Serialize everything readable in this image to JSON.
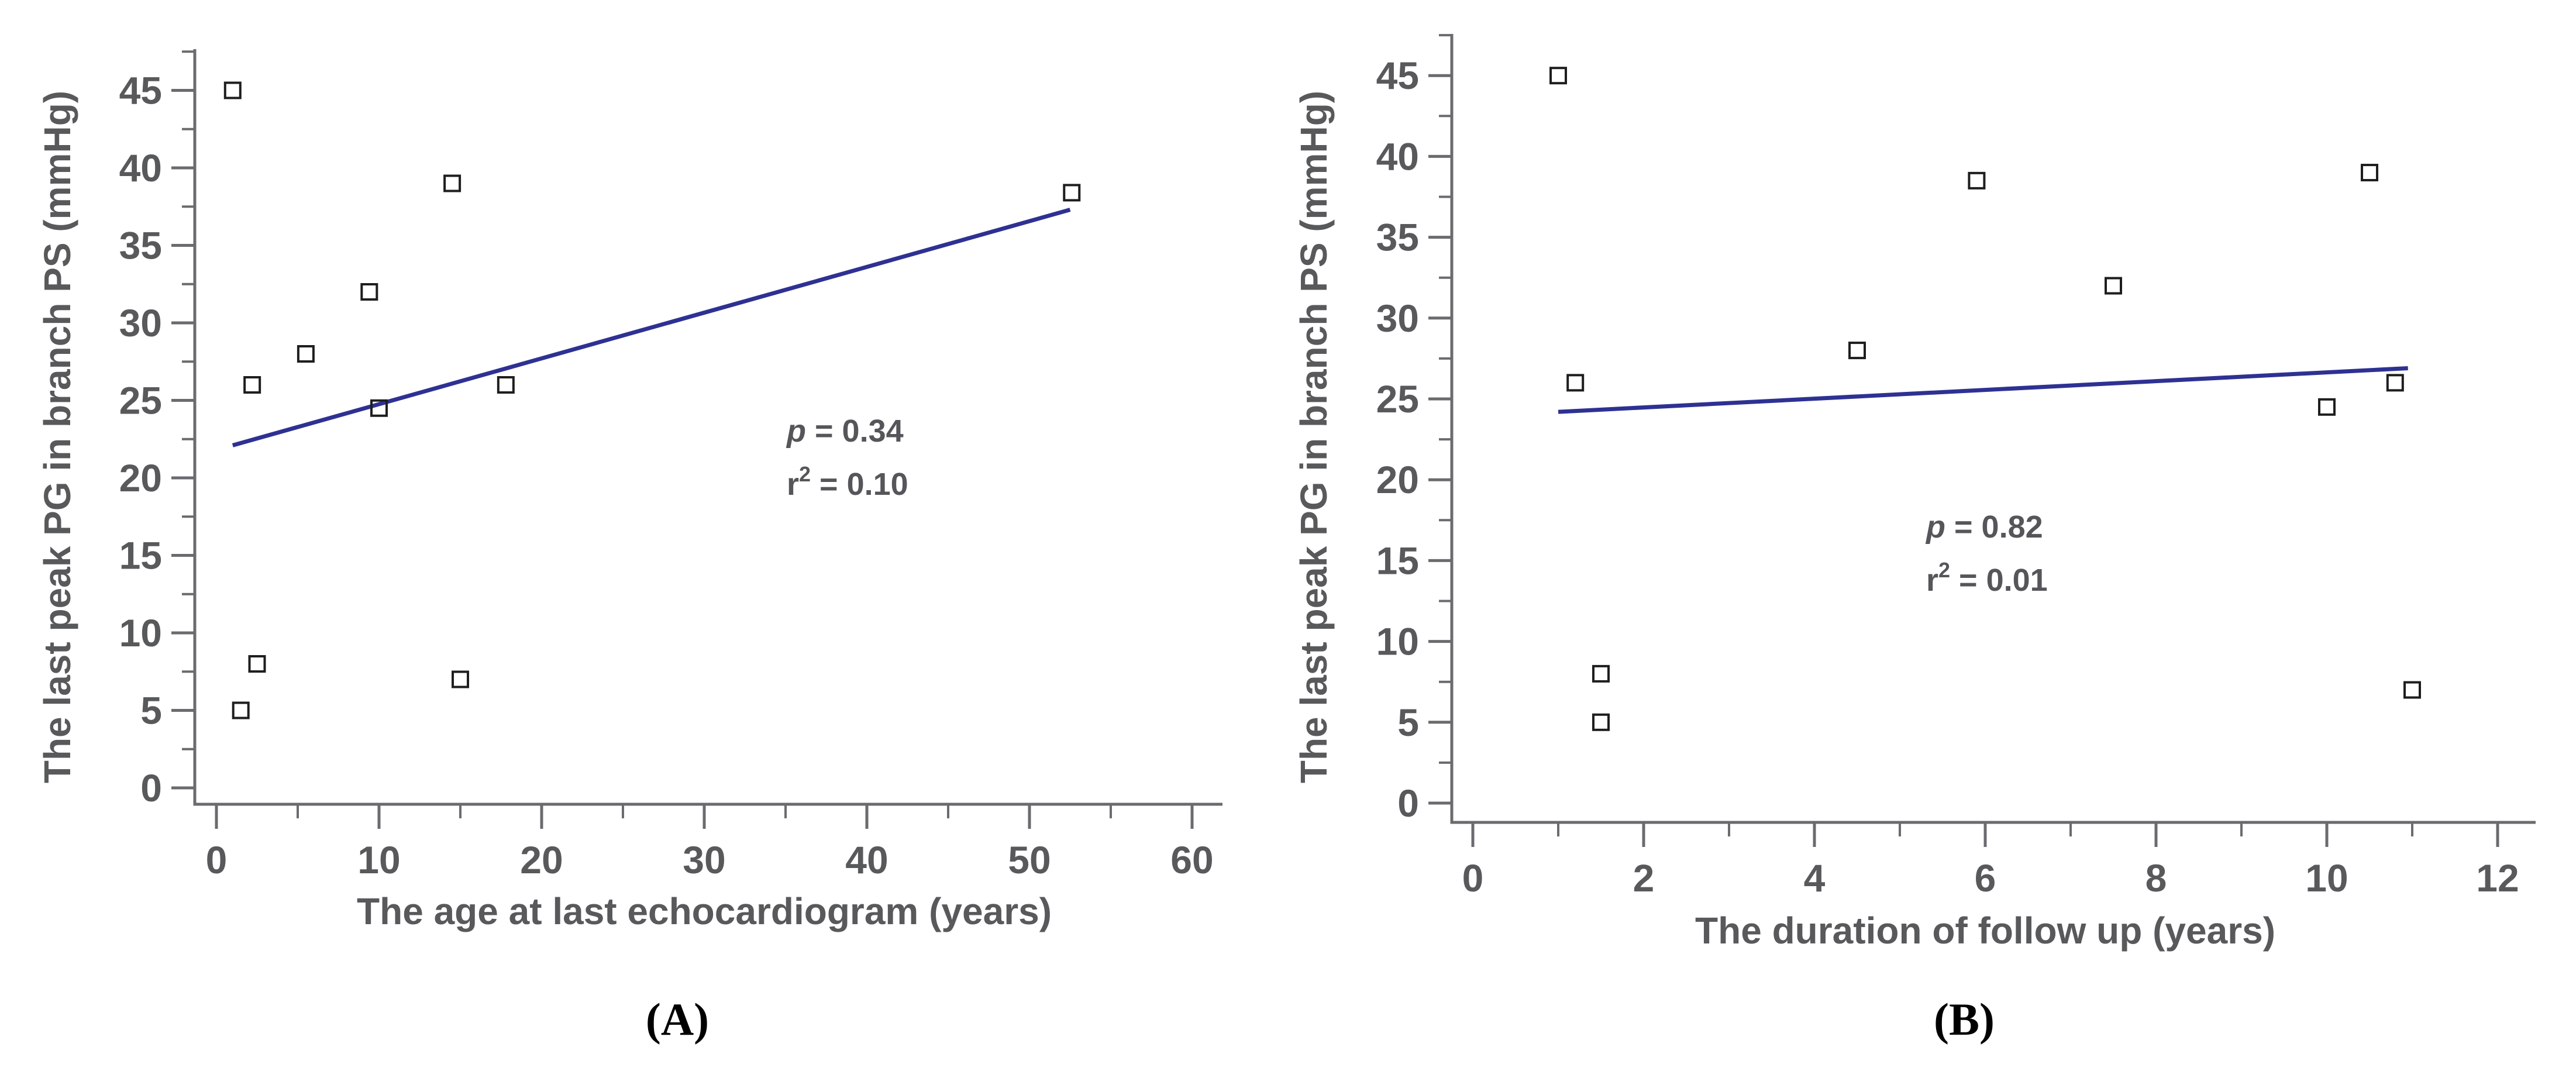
{
  "figure": {
    "background": "#ffffff",
    "description_visible_text_only": "Two scatter plots with open square markers and linear regression lines"
  },
  "style": {
    "trend_color": "#2e3192",
    "marker_color": "#1e1e1e",
    "axis_color": "#6a6b6e",
    "text_color": "#58595b",
    "annotation_color": "#55565a"
  },
  "chart_data": [
    {
      "id": "A",
      "type": "scatter",
      "panel_label": "(A)",
      "xlabel": "The age at last echocardiogram (years)",
      "ylabel": "The last peak PG in branch PS (mmHg)",
      "xlim": [
        0,
        60
      ],
      "ylim": [
        0,
        45
      ],
      "x_ticks": [
        0,
        10,
        20,
        30,
        40,
        50,
        60
      ],
      "x_minor_step": 5,
      "y_ticks": [
        0,
        5,
        10,
        15,
        20,
        25,
        30,
        35,
        40,
        45
      ],
      "y_minor_step": 2.5,
      "grid": false,
      "legend": false,
      "marker": "open-square",
      "points": [
        [
          1,
          45
        ],
        [
          2.2,
          26
        ],
        [
          1.5,
          5
        ],
        [
          2.5,
          8
        ],
        [
          5.5,
          28
        ],
        [
          9.4,
          32
        ],
        [
          10,
          24.5
        ],
        [
          14.5,
          39
        ],
        [
          15,
          7
        ],
        [
          17.8,
          26
        ],
        [
          52.6,
          38.4
        ]
      ],
      "trendline": {
        "x1": 1.0,
        "y1": 22.1,
        "x2": 52.5,
        "y2": 37.3
      },
      "annotation": {
        "line1_prefix": "p",
        "line1_text": " = 0.34",
        "line2_prefix": "r",
        "line2_sup": "2",
        "line2_text": " = 0.10"
      }
    },
    {
      "id": "B",
      "type": "scatter",
      "panel_label": "(B)",
      "xlabel": "The duration of follow up (years)",
      "ylabel": "The last peak PG in branch PS (mmHg)",
      "xlim": [
        0,
        12
      ],
      "ylim": [
        0,
        45
      ],
      "x_ticks": [
        0,
        2,
        4,
        6,
        8,
        10,
        12
      ],
      "x_minor_step": 1,
      "y_ticks": [
        0,
        5,
        10,
        15,
        20,
        25,
        30,
        35,
        40,
        45
      ],
      "y_minor_step": 2.5,
      "grid": false,
      "legend": false,
      "marker": "open-square",
      "points": [
        [
          1,
          45
        ],
        [
          1.2,
          26
        ],
        [
          1.5,
          5
        ],
        [
          1.5,
          8
        ],
        [
          4.5,
          28
        ],
        [
          5.9,
          38.5
        ],
        [
          7.5,
          32
        ],
        [
          10,
          24.5
        ],
        [
          10.5,
          39
        ],
        [
          10.8,
          26
        ],
        [
          11,
          7
        ]
      ],
      "trendline": {
        "x1": 1.0,
        "y1": 24.2,
        "x2": 10.95,
        "y2": 26.9
      },
      "annotation": {
        "line1_prefix": "p",
        "line1_text": " = 0.82",
        "line2_prefix": "r",
        "line2_sup": "2",
        "line2_text": " = 0.01"
      }
    }
  ]
}
